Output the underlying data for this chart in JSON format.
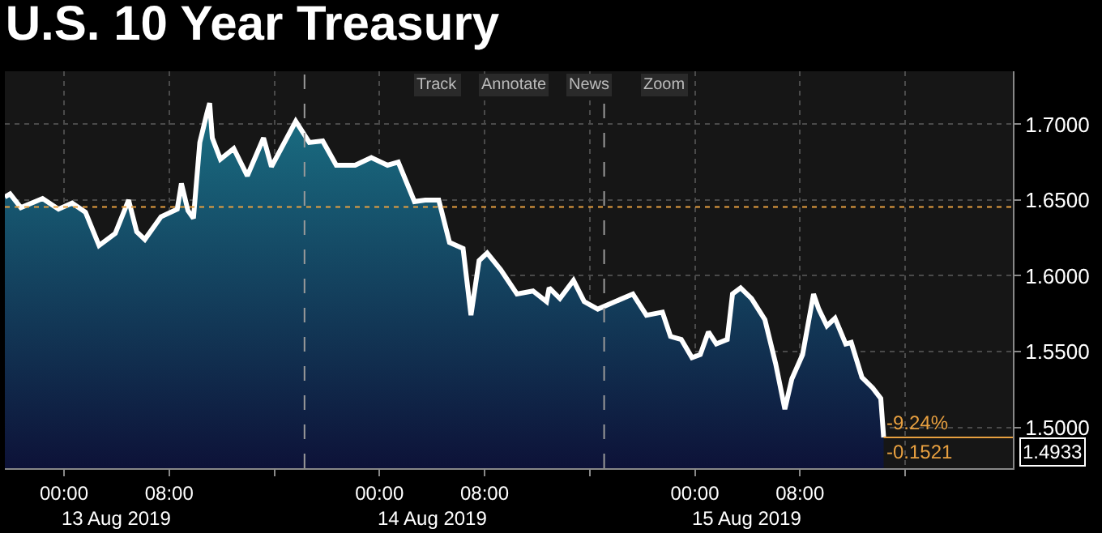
{
  "chart_data": {
    "type": "area",
    "title": "U.S. 10 Year Treasury",
    "x": [
      "2019-08-12T19:30",
      "2019-08-12T19:54",
      "2019-08-12T20:43",
      "2019-08-12T21:32",
      "2019-08-12T22:22",
      "2019-08-12T23:35",
      "2019-08-13T00:37",
      "2019-08-13T01:38",
      "2019-08-13T02:40",
      "2019-08-13T03:17",
      "2019-08-13T03:54",
      "2019-08-13T04:55",
      "2019-08-13T05:32",
      "2019-08-13T06:09",
      "2019-08-13T07:23",
      "2019-08-13T08:37",
      "2019-08-13T08:56",
      "2019-08-13T09:26",
      "2019-08-13T09:51",
      "2019-08-13T10:20",
      "2019-08-13T10:52",
      "2019-08-13T11:05",
      "2019-08-13T11:17",
      "2019-08-13T11:54",
      "2019-08-13T12:55",
      "2019-08-13T13:57",
      "2019-08-13T15:11",
      "2019-08-13T15:47",
      "2019-08-13T17:38",
      "2019-08-13T18:40",
      "2019-08-13T19:41",
      "2019-08-13T20:43",
      "2019-08-13T22:09",
      "2019-08-13T23:23",
      "2019-08-14T00:37",
      "2019-08-14T01:26",
      "2019-08-14T02:40",
      "2019-08-14T03:29",
      "2019-08-14T04:31",
      "2019-08-14T05:20",
      "2019-08-14T06:22",
      "2019-08-14T06:58",
      "2019-08-14T07:35",
      "2019-08-14T08:12",
      "2019-08-14T09:14",
      "2019-08-14T10:28",
      "2019-08-14T11:41",
      "2019-08-14T12:43",
      "2019-08-14T12:55",
      "2019-08-14T13:44",
      "2019-08-14T14:46",
      "2019-08-14T15:35",
      "2019-08-14T16:37",
      "2019-08-14T19:17",
      "2019-08-14T20:19",
      "2019-08-14T21:32",
      "2019-08-14T22:09",
      "2019-08-14T22:58",
      "2019-08-14T23:47",
      "2019-08-15T00:25",
      "2019-08-15T01:02",
      "2019-08-15T01:38",
      "2019-08-15T02:28",
      "2019-08-15T02:52",
      "2019-08-15T03:29",
      "2019-08-15T04:19",
      "2019-08-15T05:20",
      "2019-08-15T06:09",
      "2019-08-15T06:51",
      "2019-08-15T07:23",
      "2019-08-15T08:12",
      "2019-08-15T09:02",
      "2019-08-15T09:26",
      "2019-08-15T10:03",
      "2019-08-15T10:40",
      "2019-08-15T11:29",
      "2019-08-15T11:54",
      "2019-08-15T12:43",
      "2019-08-15T13:32",
      "2019-08-15T14:09",
      "2019-08-15T14:22"
    ],
    "series": [
      {
        "color": "#ffffff",
        "values": [
          1.652,
          1.654,
          1.645,
          1.648,
          1.651,
          1.644,
          1.648,
          1.642,
          1.62,
          1.624,
          1.628,
          1.65,
          1.629,
          1.624,
          1.639,
          1.644,
          1.661,
          1.643,
          1.638,
          1.688,
          1.707,
          1.714,
          1.691,
          1.677,
          1.684,
          1.666,
          1.691,
          1.672,
          1.702,
          1.688,
          1.689,
          1.673,
          1.673,
          1.678,
          1.673,
          1.675,
          1.649,
          1.65,
          1.65,
          1.622,
          1.618,
          1.574,
          1.61,
          1.615,
          1.604,
          1.588,
          1.59,
          1.583,
          1.592,
          1.585,
          1.597,
          1.583,
          1.578,
          1.588,
          1.574,
          1.576,
          1.56,
          1.558,
          1.546,
          1.548,
          1.563,
          1.555,
          1.558,
          1.588,
          1.592,
          1.585,
          1.571,
          1.542,
          1.512,
          1.532,
          1.548,
          1.588,
          1.578,
          1.567,
          1.572,
          1.555,
          1.556,
          1.533,
          1.526,
          1.519,
          1.4933
        ]
      }
    ],
    "xlim": [
      "2019-08-12T19:30",
      "2019-08-16T00:12"
    ],
    "xticks": [
      {
        "value": "2019-08-13T00:00",
        "label": "00:00"
      },
      {
        "value": "2019-08-13T08:00",
        "label": "08:00"
      },
      {
        "value": "2019-08-13T16:00",
        "label": null
      },
      {
        "value": "2019-08-14T00:00",
        "label": "00:00"
      },
      {
        "value": "2019-08-14T08:00",
        "label": "08:00"
      },
      {
        "value": "2019-08-14T16:00",
        "label": null
      },
      {
        "value": "2019-08-15T00:00",
        "label": "00:00"
      },
      {
        "value": "2019-08-15T08:00",
        "label": "08:00"
      },
      {
        "value": "2019-08-15T16:00",
        "label": null
      }
    ],
    "ylim": [
      1.473,
      1.735
    ],
    "yticks": [
      {
        "value": 1.5,
        "label": "1.5000"
      },
      {
        "value": 1.55,
        "label": "1.5500"
      },
      {
        "value": 1.6,
        "label": "1.6000"
      },
      {
        "value": 1.65,
        "label": "1.6500"
      },
      {
        "value": 1.7,
        "label": "1.7000"
      }
    ],
    "grid": true,
    "ref_lines": [
      {
        "axis": "y",
        "value": 1.6454,
        "color": "#e8a040",
        "line_style": "dotted"
      },
      {
        "axis": "x",
        "value": "2019-08-13T18:18",
        "color": "#9a9a9a",
        "line_style": "dashed"
      },
      {
        "axis": "x",
        "value": "2019-08-14T17:06",
        "color": "#9a9a9a",
        "line_style": "dashed"
      }
    ],
    "annotations": [
      "Track",
      "Annotate",
      "News",
      "Zoom",
      "13 Aug 2019",
      "14 Aug 2019",
      "15 Aug 2019",
      {
        "text": "-9.24%",
        "x": "2019-08-15T14:22",
        "y": 1.4933
      },
      {
        "text": "-0.1521",
        "x": "2019-08-15T14:22",
        "y": 1.4933
      },
      {
        "text": "1.4933",
        "x": "2019-08-15T14:22",
        "y": 1.4933
      }
    ]
  }
}
